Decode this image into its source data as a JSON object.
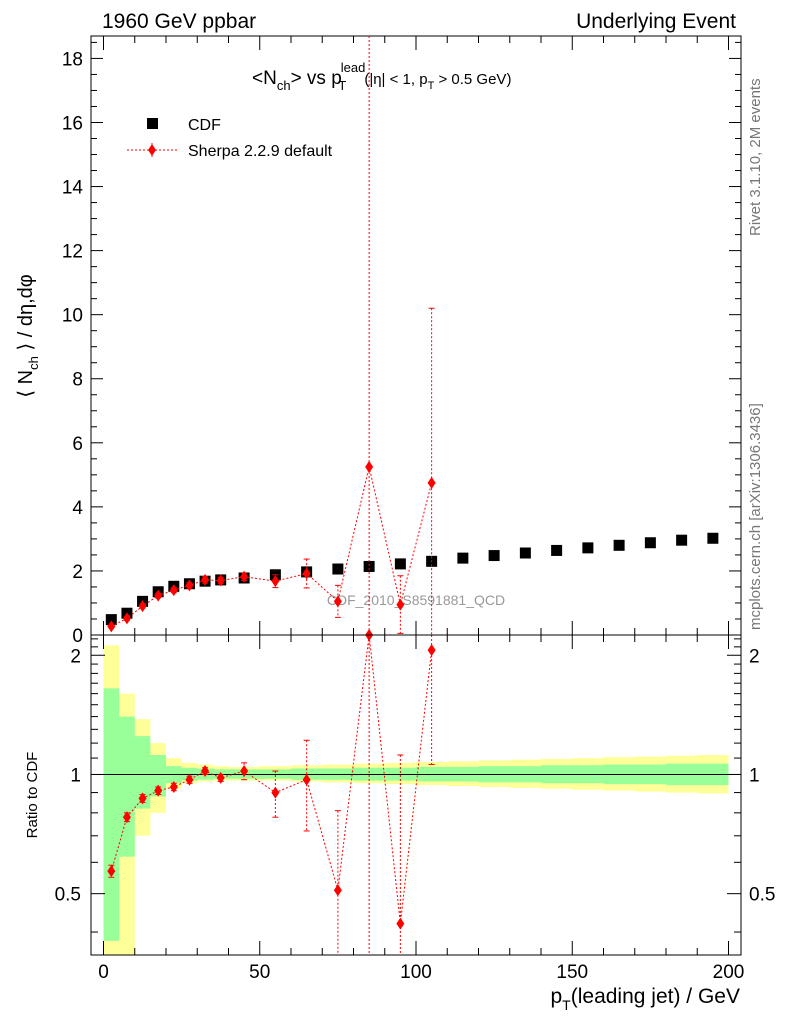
{
  "header": {
    "left": "1960 GeV ppbar",
    "right": "Underlying Event"
  },
  "side_text": {
    "top": "Rivet 3.1.10,  2M events",
    "bottom": "mcplots.cern.ch [arXiv:1306.3436]"
  },
  "watermark": "CDF_2010_S8591881_QCD",
  "colors": {
    "data": "#000000",
    "mc": "#ff0000",
    "band_outer": "#ffff99",
    "band_inner": "#99ff99"
  },
  "chart_data": [
    {
      "type": "scatter",
      "title": "<N_ch> vs p_T^lead (|η| < 1, p_T > 0.5 GeV)",
      "ylabel": "⟨ N_ch ⟩ / dη,dφ",
      "xlim": [
        -4,
        204
      ],
      "ylim": [
        0,
        18.7
      ],
      "yticks": [
        0,
        2,
        4,
        6,
        8,
        10,
        12,
        14,
        16,
        18
      ],
      "legend": {
        "position": "top-left",
        "entries": [
          "CDF",
          "Sherpa 2.2.9 default"
        ]
      },
      "series": [
        {
          "name": "CDF",
          "marker": "square",
          "x": [
            2.5,
            7.5,
            12.5,
            17.5,
            22.5,
            27.5,
            32.5,
            37.5,
            45,
            55,
            65,
            75,
            85,
            95,
            105,
            115,
            125,
            135,
            145,
            155,
            165,
            175,
            185,
            195
          ],
          "y": [
            0.48,
            0.68,
            1.05,
            1.35,
            1.52,
            1.6,
            1.68,
            1.72,
            1.78,
            1.88,
            1.97,
            2.06,
            2.14,
            2.22,
            2.3,
            2.4,
            2.48,
            2.56,
            2.64,
            2.72,
            2.8,
            2.88,
            2.96,
            3.02
          ]
        },
        {
          "name": "Sherpa 2.2.9 default",
          "marker": "diamond",
          "x": [
            2.5,
            7.5,
            12.5,
            17.5,
            22.5,
            27.5,
            32.5,
            37.5,
            45,
            55,
            65,
            75,
            85,
            95,
            105
          ],
          "y": [
            0.27,
            0.52,
            0.9,
            1.23,
            1.4,
            1.55,
            1.72,
            1.7,
            1.82,
            1.68,
            1.92,
            1.05,
            5.25,
            0.95,
            4.75
          ],
          "yerr": [
            0.04,
            0.06,
            0.06,
            0.07,
            0.08,
            0.08,
            0.1,
            0.1,
            0.12,
            0.2,
            0.45,
            0.5,
            18.7,
            0.9,
            5.45
          ]
        }
      ]
    },
    {
      "type": "scatter",
      "ylabel": "Ratio to CDF",
      "xlabel": "p_T(leading jet) / GeV",
      "xlim": [
        -4,
        204
      ],
      "ylim": [
        0.35,
        2.25
      ],
      "yticks": [
        0.5,
        1,
        2
      ],
      "xticks": [
        0,
        50,
        100,
        150,
        200
      ],
      "reference_line": 1,
      "bands": {
        "x_edges": [
          0,
          5,
          10,
          15,
          20,
          25,
          30,
          35,
          40,
          50,
          60,
          70,
          80,
          90,
          100,
          110,
          120,
          130,
          140,
          150,
          160,
          170,
          180,
          190,
          200
        ],
        "outer_lo": [
          0.35,
          0.35,
          0.7,
          0.8,
          0.92,
          0.95,
          0.96,
          0.965,
          0.965,
          0.965,
          0.96,
          0.955,
          0.95,
          0.945,
          0.94,
          0.935,
          0.93,
          0.925,
          0.92,
          0.915,
          0.91,
          0.905,
          0.9,
          0.895
        ],
        "outer_hi": [
          2.12,
          1.6,
          1.38,
          1.2,
          1.1,
          1.07,
          1.06,
          1.05,
          1.045,
          1.05,
          1.055,
          1.06,
          1.065,
          1.07,
          1.075,
          1.08,
          1.085,
          1.09,
          1.095,
          1.1,
          1.105,
          1.11,
          1.115,
          1.12
        ],
        "inner_lo": [
          0.38,
          0.62,
          0.82,
          0.88,
          0.95,
          0.965,
          0.97,
          0.975,
          0.975,
          0.975,
          0.97,
          0.97,
          0.965,
          0.965,
          0.96,
          0.96,
          0.955,
          0.955,
          0.95,
          0.95,
          0.945,
          0.945,
          0.94,
          0.94
        ],
        "inner_hi": [
          1.65,
          1.4,
          1.25,
          1.12,
          1.05,
          1.04,
          1.035,
          1.03,
          1.03,
          1.03,
          1.035,
          1.035,
          1.04,
          1.04,
          1.045,
          1.045,
          1.05,
          1.05,
          1.055,
          1.055,
          1.06,
          1.06,
          1.065,
          1.065
        ]
      },
      "series": [
        {
          "name": "Sherpa 2.2.9 default",
          "x": [
            2.5,
            7.5,
            12.5,
            17.5,
            22.5,
            27.5,
            32.5,
            37.5,
            45,
            55,
            65,
            75,
            85,
            95,
            105
          ],
          "y": [
            0.57,
            0.78,
            0.87,
            0.91,
            0.93,
            0.97,
            1.02,
            0.98,
            1.02,
            0.9,
            0.97,
            0.51,
            2.25,
            0.42,
            2.06
          ],
          "yerr": [
            0.02,
            0.02,
            0.02,
            0.02,
            0.02,
            0.02,
            0.02,
            0.02,
            0.05,
            0.12,
            0.25,
            0.3,
            2.5,
            0.7,
            1.0
          ]
        }
      ]
    }
  ]
}
